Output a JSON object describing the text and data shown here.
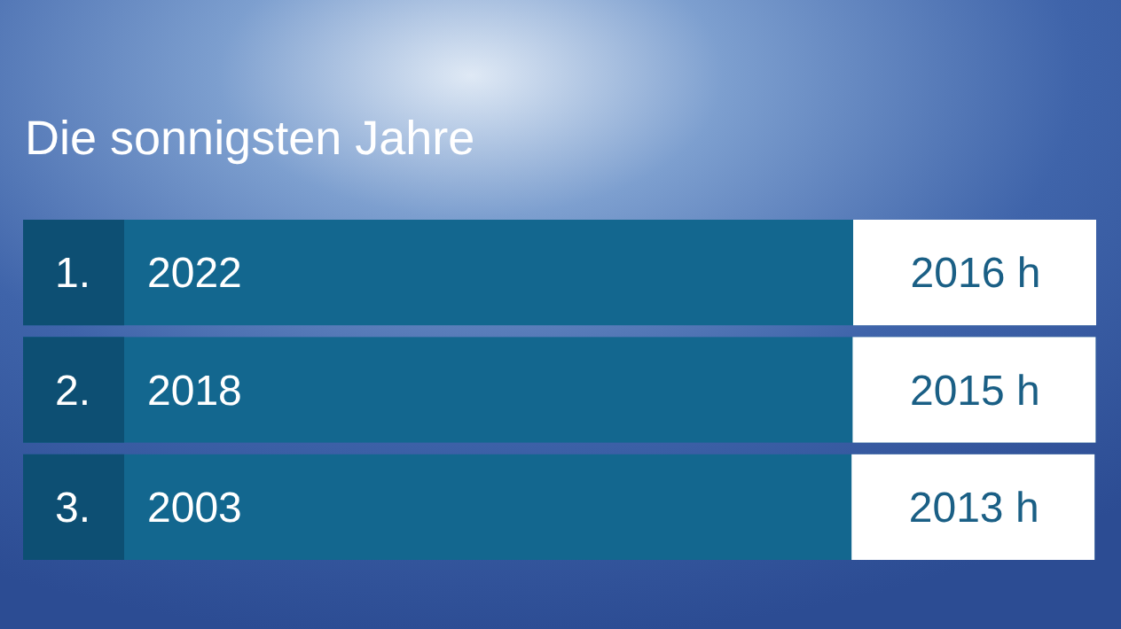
{
  "chart_data": {
    "type": "bar",
    "orientation": "horizontal",
    "title": "Die sonnigsten Jahre",
    "categories": [
      "2022",
      "2018",
      "2003"
    ],
    "values": [
      2016,
      2015,
      2013
    ],
    "value_labels": [
      "2016 h",
      "2015 h",
      "2013 h"
    ],
    "annotations": [
      "1.",
      "2.",
      "3."
    ],
    "color": "#13678f"
  }
}
